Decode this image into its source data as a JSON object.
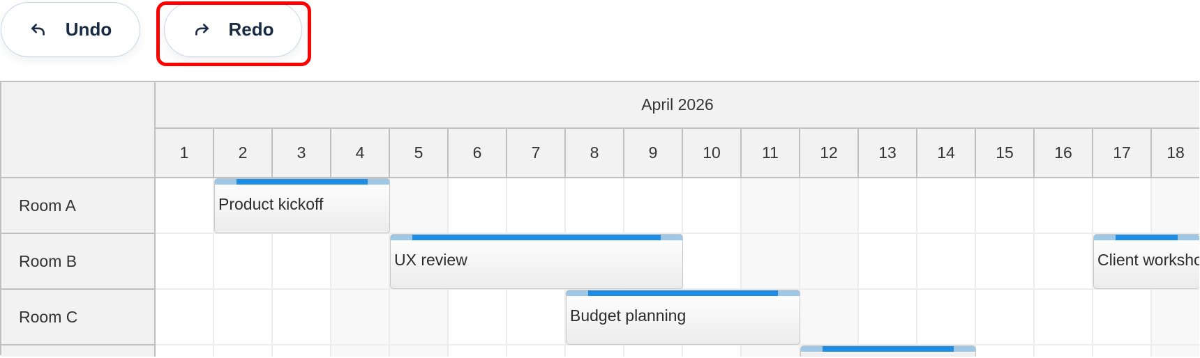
{
  "toolbar": {
    "undo_label": "Undo",
    "redo_label": "Redo",
    "undo_icon": "undo-arrow-icon",
    "redo_icon": "redo-arrow-icon"
  },
  "scheduler": {
    "month": "April 2026",
    "days": [
      "1",
      "2",
      "3",
      "4",
      "5",
      "6",
      "7",
      "8",
      "9",
      "10",
      "11",
      "12",
      "13",
      "14",
      "15",
      "16",
      "17",
      "18"
    ],
    "weekend_days": [
      4,
      5,
      11,
      12,
      18
    ],
    "resources": [
      "Room A",
      "Room B",
      "Room C",
      ""
    ],
    "events": [
      {
        "title": "Product kickoff",
        "resource": 0,
        "start": 2,
        "end": 4
      },
      {
        "title": "UX review",
        "resource": 1,
        "start": 5,
        "end": 9
      },
      {
        "title": "Client workshop",
        "resource": 1,
        "start": 17,
        "end": 19
      },
      {
        "title": "Budget planning",
        "resource": 2,
        "start": 8,
        "end": 11
      },
      {
        "title": "",
        "resource": 3,
        "start": 12,
        "end": 14
      }
    ],
    "colors": {
      "event_bar": "#1e8ce3",
      "event_bar_handle": "#9fc8e6",
      "highlight": "#ff0000"
    }
  }
}
